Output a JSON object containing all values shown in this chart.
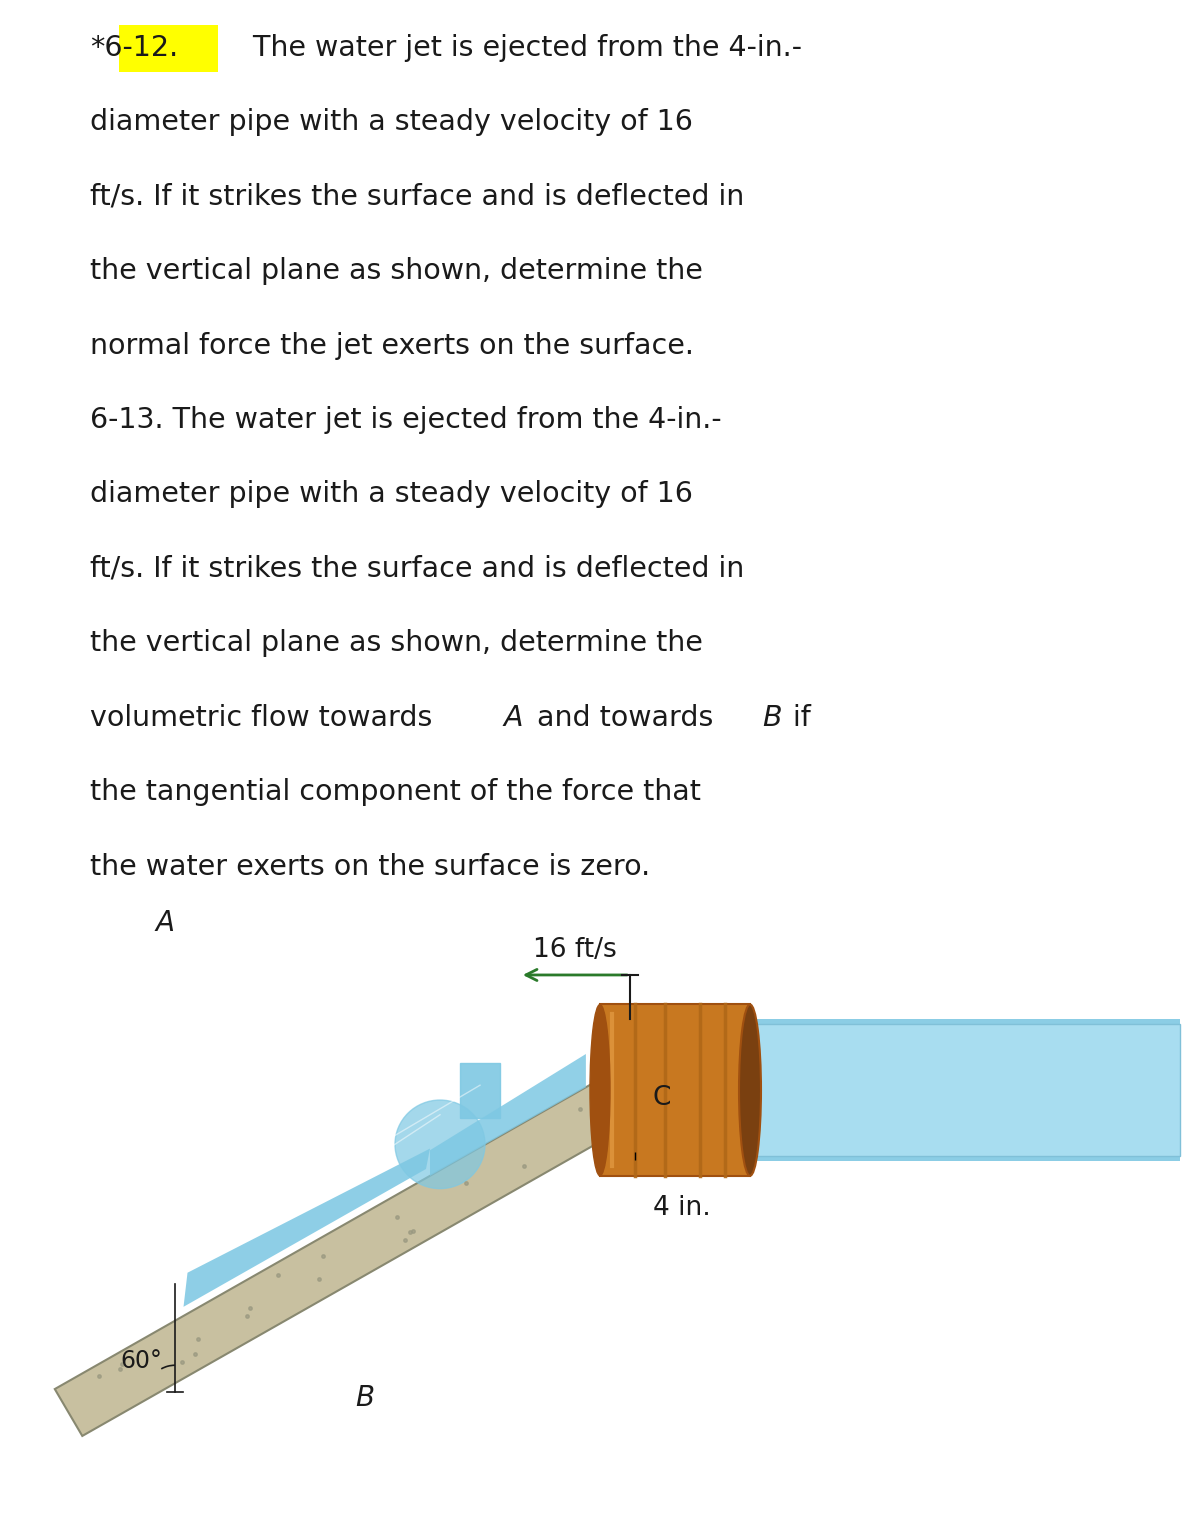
{
  "background_color": "#ffffff",
  "text_color": "#1a1a1a",
  "problem_612_label": "*6-12.",
  "problem_612_highlight_color": "#ffff00",
  "problem_612_text_lines": [
    " The water jet is ejected from the 4-in.-",
    "diameter pipe with a steady velocity of 16",
    "ft/s. If it strikes the surface and is deflected in",
    "the vertical plane as shown, determine the",
    "normal force the jet exerts on the surface."
  ],
  "problem_613_text_lines": [
    "6-13. The water jet is ejected from the 4-in.-",
    "diameter pipe with a steady velocity of 16",
    "ft/s. If it strikes the surface and is deflected in",
    "the vertical plane as shown, determine the",
    "volumetric flow towards  A and towards  B if",
    "the tangential component of the force that",
    "the water exerts on the surface is zero."
  ],
  "text_fontsize": 20.5,
  "label_fontsize": 20.5,
  "diagram_label_fontsize": 19,
  "velocity_label": "16 ft/s",
  "pipe_label": "4 in.",
  "label_A": "A",
  "label_B": "B",
  "label_C": "C",
  "angle_label": "60°",
  "surface_color": "#c8c0a0",
  "surface_edge_color": "#888870",
  "water_color": "#7ec8e3",
  "water_edge_color": "#5aaac8",
  "pipe_body_color": "#c87820",
  "pipe_body_dark": "#a05010",
  "pipe_body_light": "#e09840",
  "pipe_ring_color": "#b06818",
  "arrow_color": "#2a7a2a",
  "arrow_head_color": "#2a7a2a"
}
